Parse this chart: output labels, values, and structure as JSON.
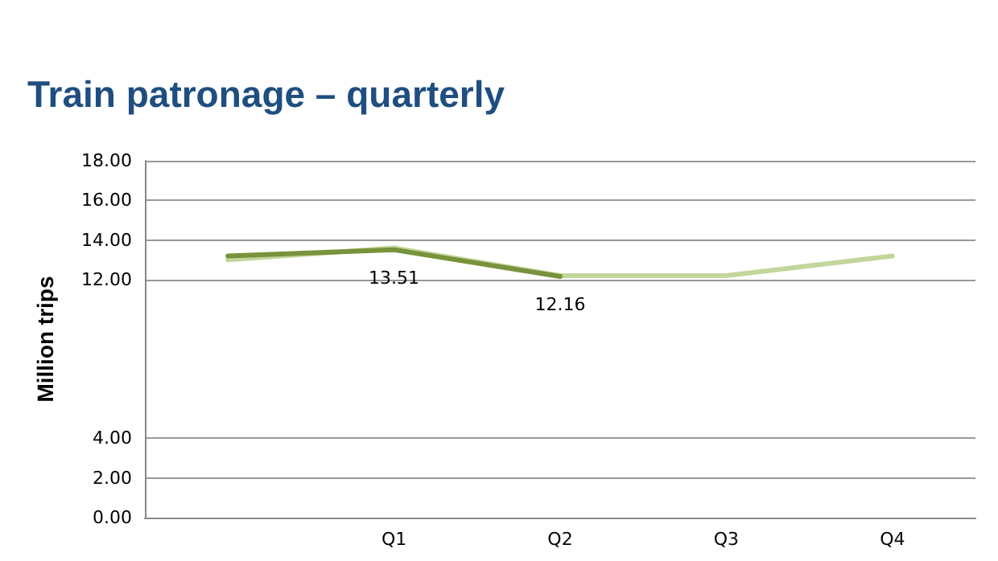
{
  "chart_data": {
    "type": "line",
    "title": "Train patronage – quarterly",
    "ylabel": "Million trips",
    "categories": [
      null,
      "Q1",
      "Q2",
      "Q3",
      "Q4"
    ],
    "series": [
      {
        "color": "#c3d69b",
        "values": [
          13.0,
          13.6,
          12.2,
          12.2,
          13.2
        ]
      },
      {
        "color": "#77933c",
        "values": [
          13.2,
          13.51,
          12.16,
          null,
          null
        ],
        "value_labels": [
          null,
          "13.51",
          "12.16",
          null,
          null
        ]
      }
    ],
    "ylim": [
      0,
      18
    ],
    "yticks": [
      {
        "value": 0,
        "label": "0.00"
      },
      {
        "value": 2,
        "label": "2.00"
      },
      {
        "value": 4,
        "label": "4.00"
      },
      {
        "value": 12,
        "label": "12.00"
      },
      {
        "value": 14,
        "label": "14.00"
      },
      {
        "value": 16,
        "label": "16.00"
      },
      {
        "value": 18,
        "label": "18.00"
      }
    ],
    "grid": "y",
    "marker": "none",
    "line_style": "solid"
  }
}
